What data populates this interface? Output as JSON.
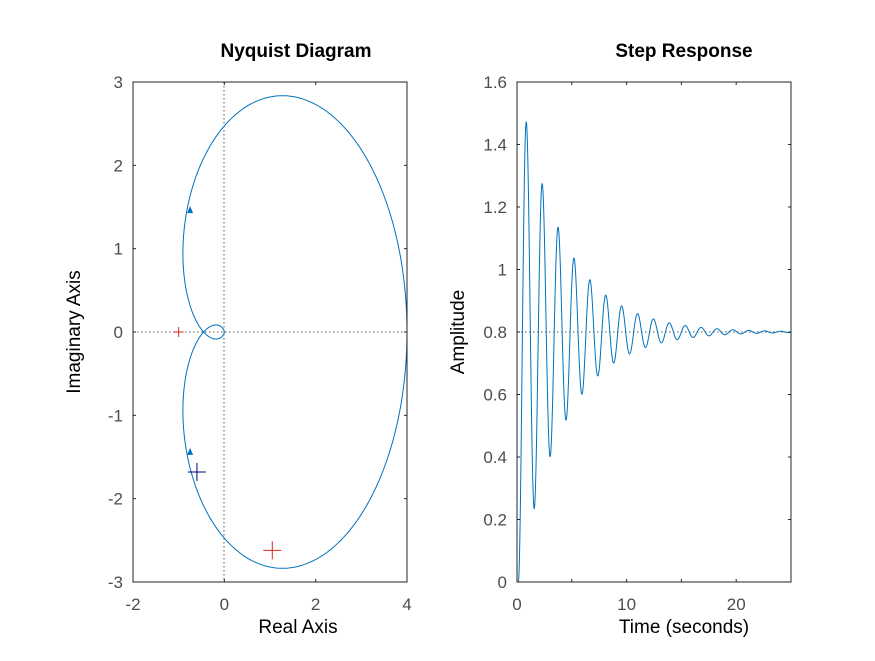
{
  "chart_data": [
    {
      "type": "line",
      "title": "Nyquist Diagram",
      "xlabel": "Real Axis",
      "ylabel": "Imaginary Axis",
      "xlim": [
        -2,
        4
      ],
      "ylim": [
        -3,
        3
      ],
      "xticks": [
        "-2",
        "0",
        "2",
        "4"
      ],
      "yticks": [
        "-3",
        "-2",
        "-1",
        "0",
        "1",
        "2",
        "3"
      ],
      "grid": false,
      "zero_lines": true,
      "critical_point": [
        -1,
        0
      ],
      "markers": [
        {
          "x": 1.05,
          "y": -2.62,
          "color": "#d62728"
        },
        {
          "x": -0.6,
          "y": -1.68,
          "color": "#000080"
        }
      ],
      "series": [
        {
          "color": "#0072bd"
        }
      ]
    },
    {
      "type": "line",
      "title": "Step Response",
      "xlabel": "Time (seconds)",
      "ylabel": "Amplitude",
      "xlim": [
        0,
        25
      ],
      "ylim": [
        0,
        1.6
      ],
      "xticks": [
        "0",
        "10",
        "20"
      ],
      "yticks": [
        "0",
        "0.2",
        "0.4",
        "0.6",
        "0.8",
        "1",
        "1.2",
        "1.4",
        "1.6"
      ],
      "grid": false,
      "steady_state": 0.8,
      "peak": {
        "x": 0.8,
        "y": 1.51
      },
      "series": [
        {
          "color": "#0072bd"
        }
      ]
    }
  ]
}
